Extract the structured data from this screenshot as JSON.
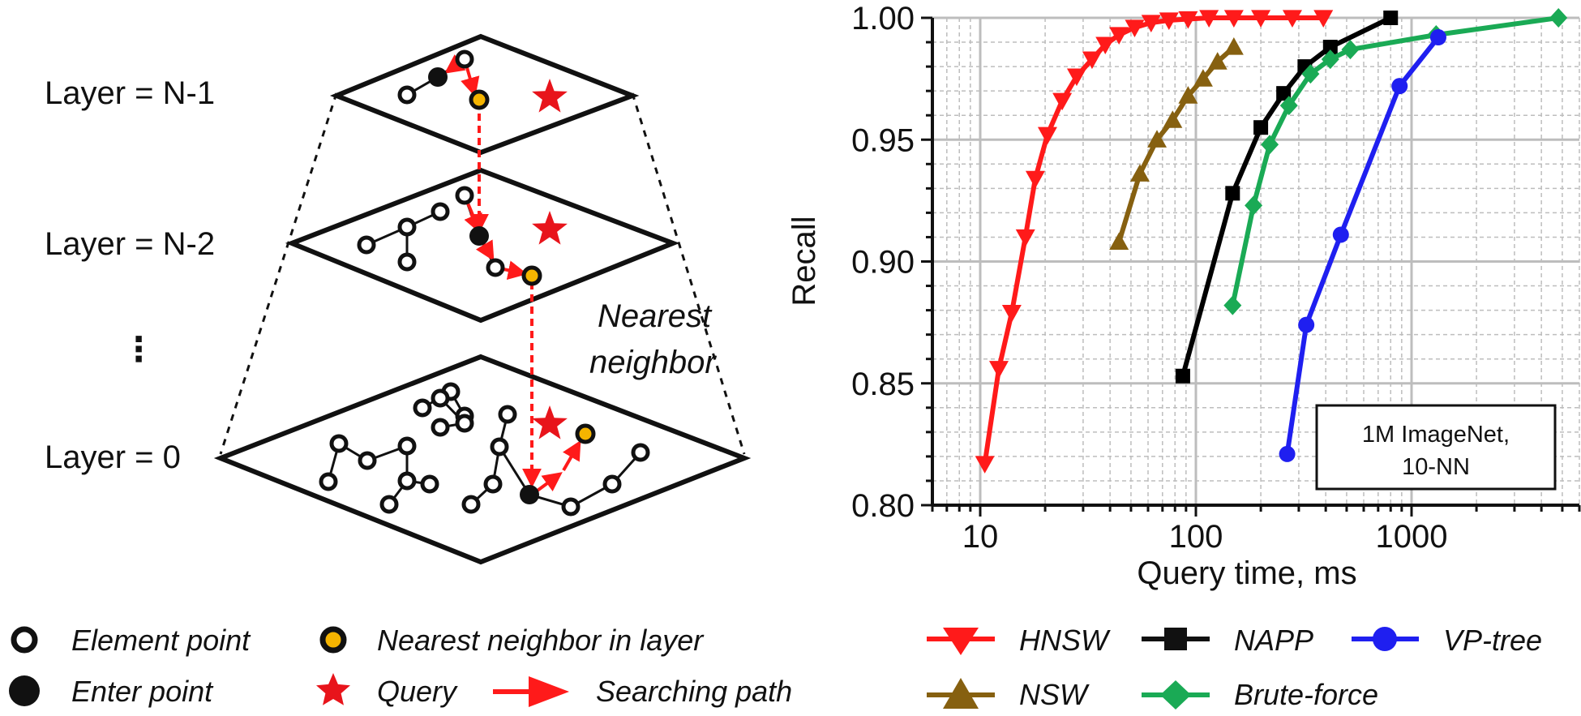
{
  "diagram": {
    "layers": [
      "Layer = N-1",
      "Layer = N-2",
      "⋮",
      "Layer = 0"
    ],
    "annotation_line1": "Nearest",
    "annotation_line2": "neighbor",
    "legend": {
      "element_point": "Element point",
      "enter_point": "Enter point",
      "nearest_in_layer": "Nearest neighbor in layer",
      "query": "Query",
      "searching_path": "Searching path"
    },
    "colors": {
      "path": "#ff1a1a",
      "star": "#e8141b",
      "nearest": "#f5b400"
    }
  },
  "chart_data": {
    "type": "line",
    "xscale": "log",
    "xlabel": "Query time, ms",
    "ylabel": "Recall",
    "xlim": [
      6,
      6000
    ],
    "ylim": [
      0.8,
      1.0
    ],
    "xticks": [
      10,
      100,
      1000
    ],
    "xtick_labels": [
      "10",
      "100",
      "1000"
    ],
    "yticks": [
      0.8,
      0.85,
      0.9,
      0.95,
      1.0
    ],
    "ytick_labels": [
      "0.80",
      "0.85",
      "0.90",
      "0.95",
      "1.00"
    ],
    "annotation_line1": "1M ImageNet,",
    "annotation_line2": "10-NN",
    "series": [
      {
        "name": "HNSW",
        "color": "#ff1a1a",
        "marker": "triangle-down",
        "x": [
          10.5,
          12.2,
          14.0,
          16.2,
          18.0,
          20.5,
          24.0,
          28.0,
          33.0,
          38.0,
          44.0,
          52.0,
          62.0,
          75.0,
          92.0,
          115.0,
          150.0,
          200.0,
          280.0,
          390.0
        ],
        "y": [
          0.817,
          0.856,
          0.879,
          0.91,
          0.934,
          0.952,
          0.966,
          0.976,
          0.983,
          0.989,
          0.993,
          0.996,
          0.998,
          0.999,
          0.9995,
          1.0,
          1.0,
          1.0,
          1.0,
          1.0
        ]
      },
      {
        "name": "NSW",
        "color": "#866010",
        "marker": "triangle-up",
        "x": [
          44,
          55,
          66,
          78,
          92,
          108,
          126,
          150
        ],
        "y": [
          0.908,
          0.936,
          0.95,
          0.958,
          0.968,
          0.975,
          0.982,
          0.988
        ]
      },
      {
        "name": "NAPP",
        "color": "#000000",
        "marker": "square",
        "x": [
          87,
          148,
          200,
          255,
          320,
          420,
          800
        ],
        "y": [
          0.853,
          0.928,
          0.955,
          0.969,
          0.98,
          0.988,
          1.0
        ]
      },
      {
        "name": "Brute-force",
        "color": "#1aaa55",
        "marker": "diamond",
        "x": [
          148,
          185,
          220,
          270,
          340,
          420,
          520,
          1300,
          4800
        ],
        "y": [
          0.882,
          0.923,
          0.948,
          0.964,
          0.977,
          0.983,
          0.987,
          0.993,
          1.0
        ]
      },
      {
        "name": "VP-tree",
        "color": "#1f1ff0",
        "marker": "circle",
        "x": [
          265,
          325,
          470,
          880,
          1330
        ],
        "y": [
          0.821,
          0.874,
          0.911,
          0.972,
          0.992
        ]
      }
    ]
  }
}
